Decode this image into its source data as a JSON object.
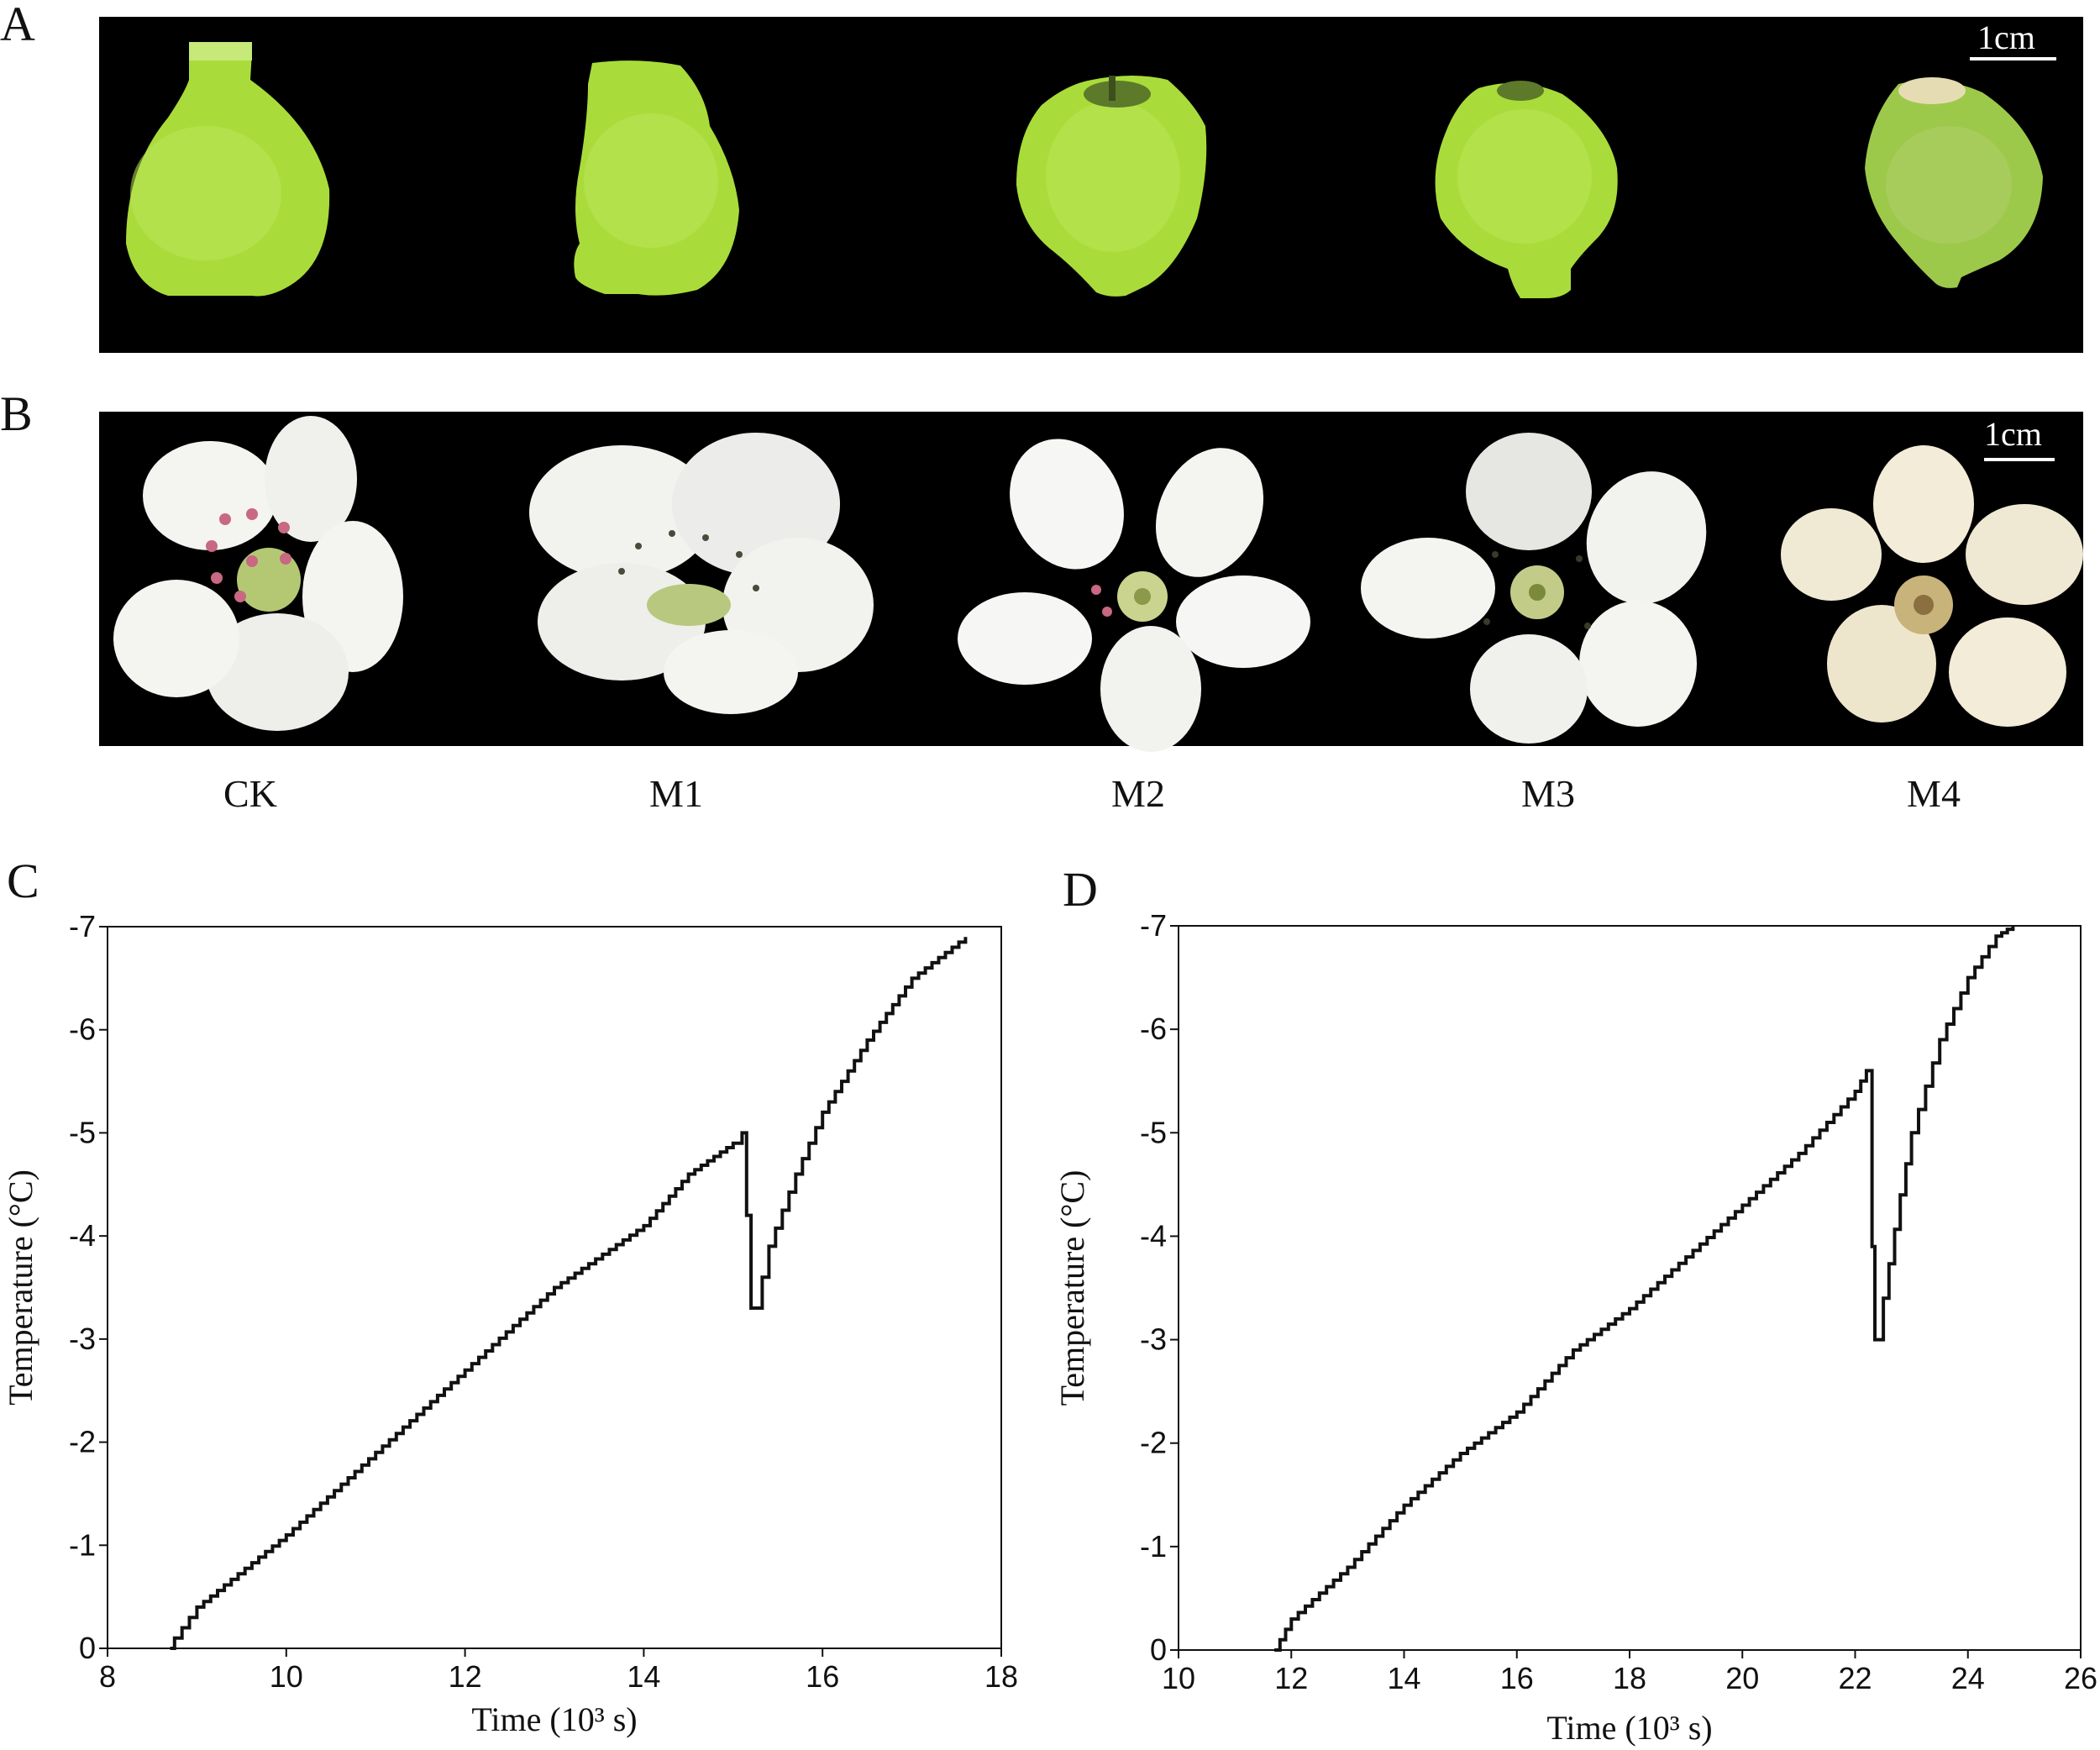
{
  "panels": {
    "a": {
      "letter": "A",
      "scale_bar": "1cm",
      "fruit_color": "#a9dc3a"
    },
    "b": {
      "letter": "B",
      "scale_bar": "1cm",
      "petal_color": "#f4f4f0"
    },
    "c": {
      "letter": "C"
    },
    "d": {
      "letter": "D"
    }
  },
  "samples": [
    "CK",
    "M1",
    "M2",
    "M3",
    "M4"
  ],
  "chart_data": [
    {
      "id": "C",
      "type": "line",
      "xlabel": "Time (10³ s)",
      "ylabel": "Temperature (°C)",
      "xlim": [
        8,
        18
      ],
      "ylim": [
        0,
        -7
      ],
      "xticks": [
        "8",
        "10",
        "12",
        "14",
        "16",
        "18"
      ],
      "yticks": [
        "0",
        "-1",
        "-2",
        "-3",
        "-4",
        "-5",
        "-6",
        "-7"
      ],
      "series": [
        {
          "x": [
            8.7,
            8.75,
            9.0,
            10.0,
            11.0,
            12.0,
            13.0,
            14.0,
            14.5,
            15.0,
            15.1,
            15.15,
            15.2,
            15.25,
            15.4,
            15.7,
            16.0,
            16.5,
            17.0,
            17.6
          ],
          "y": [
            0,
            -0.1,
            -0.4,
            -1.1,
            -1.9,
            -2.7,
            -3.5,
            -4.1,
            -4.6,
            -4.9,
            -5.0,
            -4.2,
            -3.3,
            -3.3,
            -3.9,
            -4.6,
            -5.2,
            -5.9,
            -6.5,
            -6.9
          ]
        }
      ]
    },
    {
      "id": "D",
      "type": "line",
      "xlabel": "Time (10³ s)",
      "ylabel": "Temperature (°C)",
      "xlim": [
        10,
        26
      ],
      "ylim": [
        0,
        -7
      ],
      "xticks": [
        "10",
        "12",
        "14",
        "16",
        "18",
        "20",
        "22",
        "24",
        "26"
      ],
      "yticks": [
        "0",
        "-1",
        "-2",
        "-3",
        "-4",
        "-5",
        "-6",
        "-7"
      ],
      "series": [
        {
          "x": [
            11.7,
            11.8,
            12.0,
            13.0,
            14.0,
            15.0,
            16.0,
            17.0,
            18.0,
            19.0,
            20.0,
            21.0,
            22.0,
            22.2,
            22.3,
            22.35,
            22.5,
            22.8,
            23.0,
            23.5,
            24.0,
            24.5,
            24.8
          ],
          "y": [
            0,
            -0.1,
            -0.3,
            -0.8,
            -1.4,
            -1.9,
            -2.3,
            -2.9,
            -3.3,
            -3.8,
            -4.3,
            -4.8,
            -5.4,
            -5.6,
            -3.9,
            -3.0,
            -3.4,
            -4.4,
            -5.0,
            -5.9,
            -6.5,
            -6.9,
            -7.0
          ]
        }
      ]
    }
  ]
}
